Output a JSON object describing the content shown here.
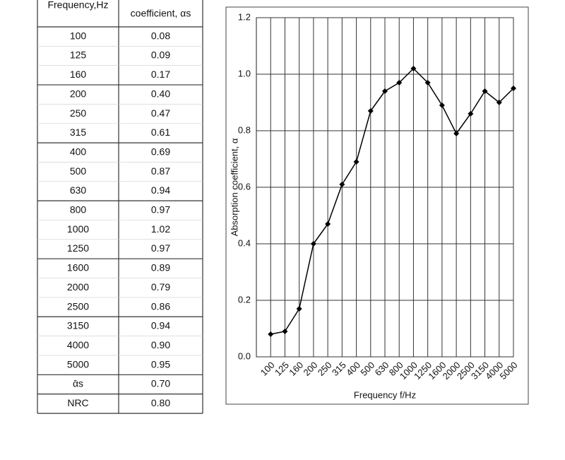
{
  "table": {
    "header": [
      "Frequency,Hz",
      "coefficient, αs"
    ],
    "rows": [
      [
        "100",
        "0.08"
      ],
      [
        "125",
        "0.09"
      ],
      [
        "160",
        "0.17"
      ],
      [
        "200",
        "0.40"
      ],
      [
        "250",
        "0.47"
      ],
      [
        "315",
        "0.61"
      ],
      [
        "400",
        "0.69"
      ],
      [
        "500",
        "0.87"
      ],
      [
        "630",
        "0.94"
      ],
      [
        "800",
        "0.97"
      ],
      [
        "1000",
        "1.02"
      ],
      [
        "1250",
        "0.97"
      ],
      [
        "1600",
        "0.89"
      ],
      [
        "2000",
        "0.79"
      ],
      [
        "2500",
        "0.86"
      ],
      [
        "3150",
        "0.94"
      ],
      [
        "4000",
        "0.90"
      ],
      [
        "5000",
        "0.95"
      ],
      [
        "ᾱs",
        "0.70"
      ],
      [
        "NRC",
        "0.80"
      ]
    ]
  },
  "chart_data": {
    "type": "line",
    "xlabel": "Frequency f/Hz",
    "ylabel": "Absorption coefficient, α",
    "categories": [
      "100",
      "125",
      "160",
      "200",
      "250",
      "315",
      "400",
      "500",
      "630",
      "800",
      "1000",
      "1250",
      "1600",
      "2000",
      "2500",
      "3150",
      "4000",
      "5000"
    ],
    "values": [
      0.08,
      0.09,
      0.17,
      0.4,
      0.47,
      0.61,
      0.69,
      0.87,
      0.94,
      0.97,
      1.02,
      0.97,
      0.89,
      0.79,
      0.86,
      0.94,
      0.9,
      0.95
    ],
    "color": "#000000",
    "ylim": [
      0,
      1.2
    ],
    "yticks": [
      {
        "value": 0,
        "label": "0.0"
      },
      0.2,
      0.4,
      0.6,
      0.8,
      {
        "value": 1,
        "label": "1.0"
      },
      1.2
    ],
    "grid": true
  }
}
